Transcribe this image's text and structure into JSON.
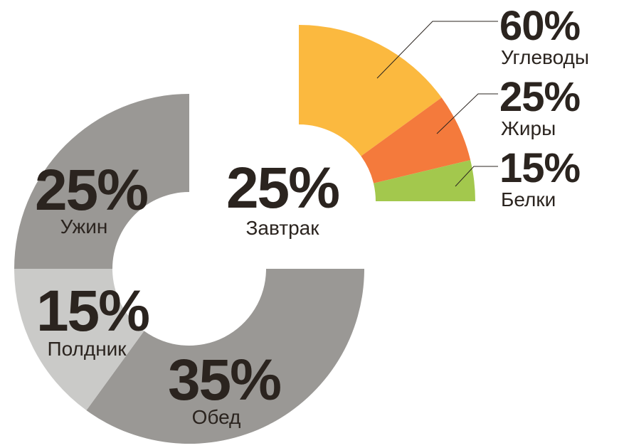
{
  "chart_data": [
    {
      "type": "pie",
      "variant": "donut",
      "series": [
        {
          "label": "Завтрак",
          "value": 25,
          "value_label": "25%",
          "color": "#ffffff"
        },
        {
          "label": "Обед",
          "value": 35,
          "value_label": "35%",
          "color": "#9a9895"
        },
        {
          "label": "Полдник",
          "value": 15,
          "value_label": "15%",
          "color": "#cacac8"
        },
        {
          "label": "Ужин",
          "value": 25,
          "value_label": "25%",
          "color": "#9a9895"
        }
      ]
    },
    {
      "type": "pie",
      "variant": "quarter-donut",
      "series": [
        {
          "label": "Углеводы",
          "value": 60,
          "value_label": "60%",
          "color": "#fbb93f"
        },
        {
          "label": "Жиры",
          "value": 25,
          "value_label": "25%",
          "color": "#f47a3c"
        },
        {
          "label": "Белки",
          "value": 15,
          "value_label": "15%",
          "color": "#a3c84d"
        }
      ]
    }
  ]
}
